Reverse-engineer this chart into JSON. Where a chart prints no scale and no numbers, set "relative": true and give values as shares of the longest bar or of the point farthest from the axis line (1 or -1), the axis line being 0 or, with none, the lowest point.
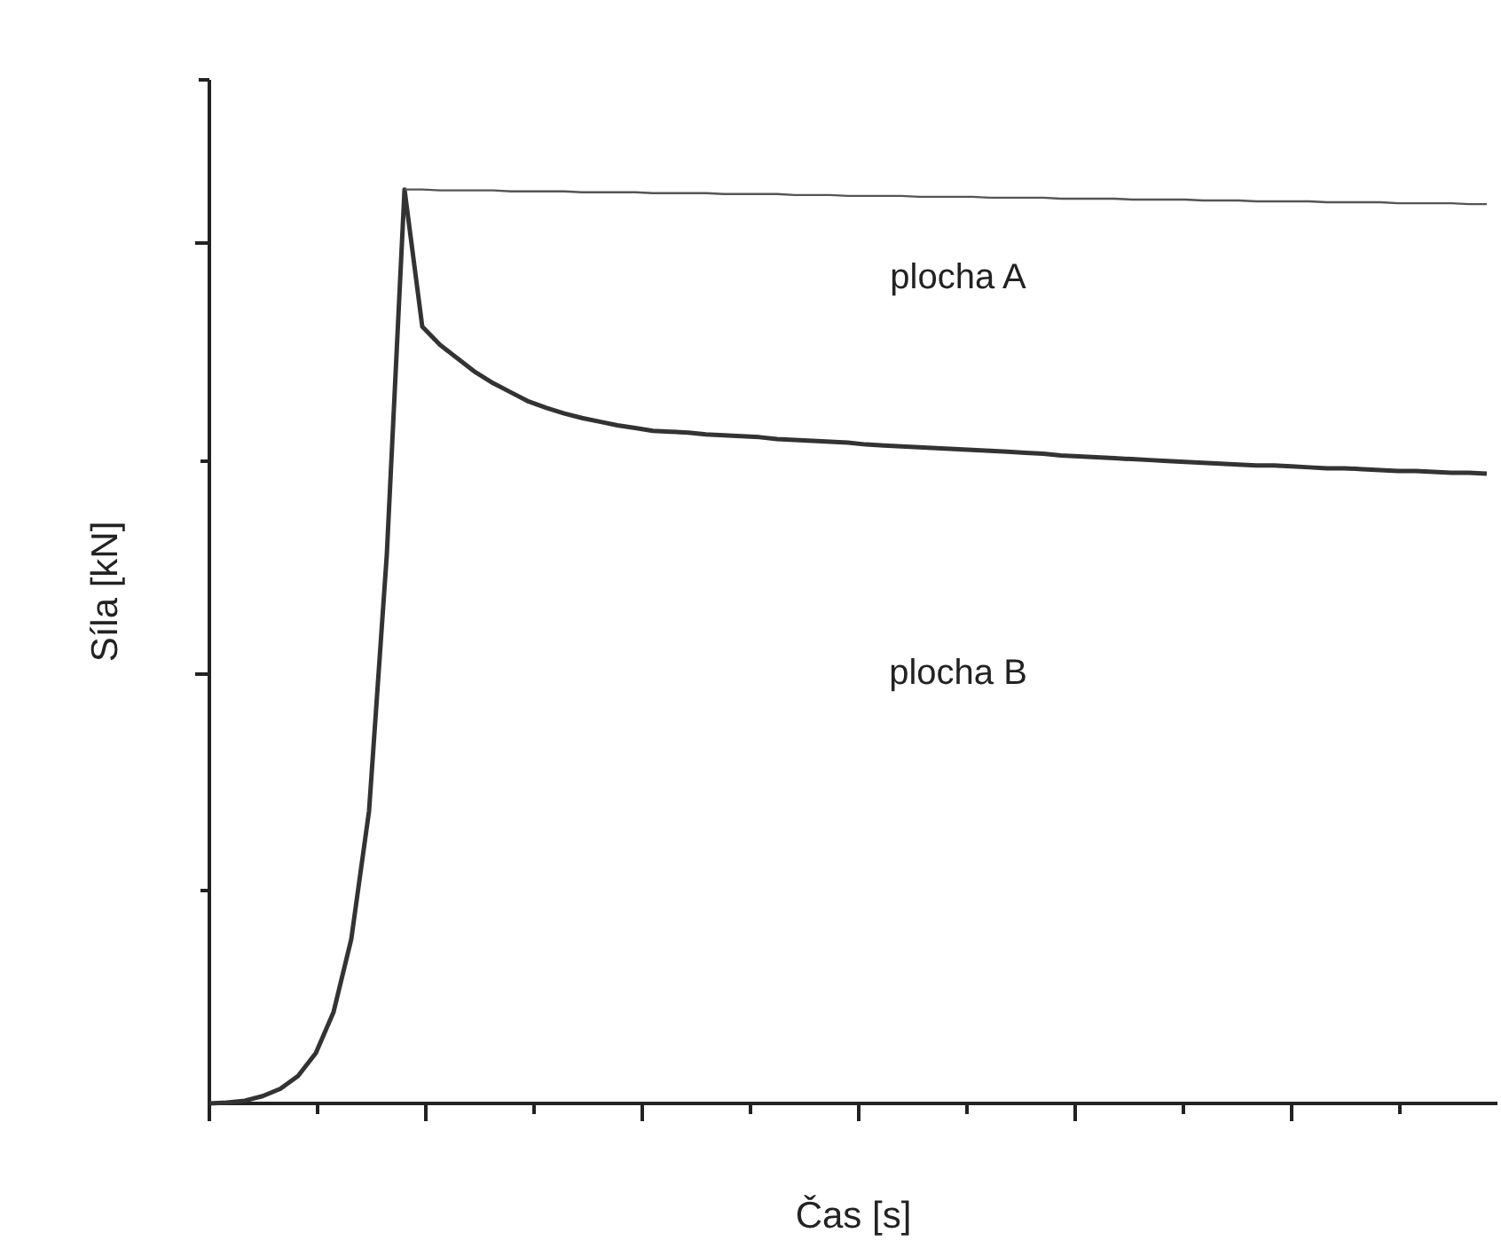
{
  "chart_data": {
    "type": "line",
    "relative": true,
    "xlabel": "Čas [s]",
    "ylabel": "Síla [kN]",
    "marker": "none",
    "categories": [
      null,
      null,
      null,
      null,
      null,
      null,
      null,
      null,
      null,
      null,
      null,
      null,
      null,
      null,
      null,
      null,
      null,
      null,
      null,
      null,
      null,
      null,
      null,
      null,
      null,
      null,
      null,
      null,
      null,
      null,
      null,
      null,
      null,
      null,
      null,
      null,
      null,
      null,
      null,
      null,
      null,
      null,
      null,
      null,
      null,
      null,
      null,
      null,
      null,
      null,
      null,
      null,
      null,
      null,
      null,
      null,
      null,
      null,
      null,
      null,
      null,
      null,
      null,
      null,
      null,
      null,
      null,
      null,
      null,
      null,
      null,
      null,
      null
    ],
    "series": [
      {
        "color": "#333333",
        "values": [
          0,
          0.001,
          0.003,
          0.008,
          0.016,
          0.03,
          0.055,
          0.1,
          0.18,
          0.32,
          0.6,
          1,
          0.85,
          0.83,
          0.815,
          0.8,
          0.788,
          0.778,
          0.768,
          0.761,
          0.755,
          0.75,
          0.746,
          0.742,
          0.739,
          0.736,
          0.735,
          0.734,
          0.732,
          0.731,
          0.73,
          0.729,
          0.727,
          0.726,
          0.725,
          0.724,
          0.723,
          0.721,
          0.72,
          0.719,
          0.718,
          0.717,
          0.716,
          0.715,
          0.714,
          0.713,
          0.712,
          0.711,
          0.709,
          0.708,
          0.707,
          0.706,
          0.705,
          0.704,
          0.703,
          0.702,
          0.701,
          0.7,
          0.699,
          0.698,
          0.698,
          0.697,
          0.696,
          0.695,
          0.695,
          0.694,
          0.693,
          0.692,
          0.692,
          0.691,
          0.69,
          0.69,
          0.689
        ]
      },
      {
        "color": "#555555",
        "values": [
          null,
          null,
          null,
          null,
          null,
          null,
          null,
          null,
          null,
          null,
          null,
          1,
          1,
          0.999,
          0.999,
          0.999,
          0.999,
          0.998,
          0.998,
          0.998,
          0.998,
          0.997,
          0.997,
          0.997,
          0.997,
          0.996,
          0.996,
          0.996,
          0.996,
          0.995,
          0.995,
          0.995,
          0.995,
          0.994,
          0.994,
          0.994,
          0.993,
          0.993,
          0.993,
          0.993,
          0.992,
          0.992,
          0.992,
          0.992,
          0.991,
          0.991,
          0.991,
          0.991,
          0.99,
          0.99,
          0.99,
          0.99,
          0.989,
          0.989,
          0.989,
          0.989,
          0.988,
          0.988,
          0.988,
          0.987,
          0.987,
          0.987,
          0.987,
          0.986,
          0.986,
          0.986,
          0.986,
          0.985,
          0.985,
          0.985,
          0.985,
          0.984,
          0.984
        ]
      }
    ],
    "annotations": [
      "plocha A",
      "plocha B"
    ]
  }
}
